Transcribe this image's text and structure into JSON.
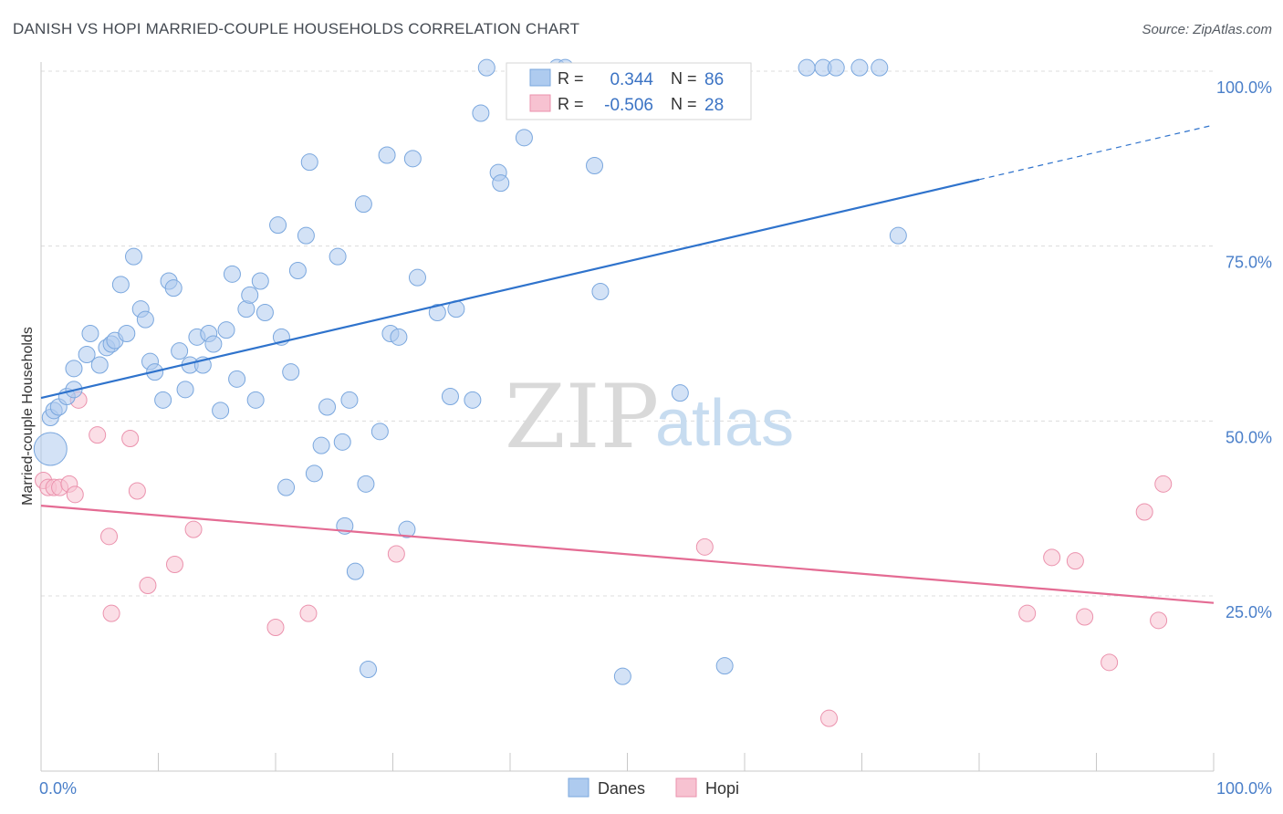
{
  "header": {
    "title": "DANISH VS HOPI MARRIED-COUPLE HOUSEHOLDS CORRELATION CHART",
    "source": "Source: ZipAtlas.com"
  },
  "watermark": {
    "zip": "ZIP",
    "atlas": "atlas"
  },
  "stats": {
    "danes": {
      "r_label": "R =",
      "r_value": "0.344",
      "n_label": "N =",
      "n_value": "86"
    },
    "hopi": {
      "r_label": "R =",
      "r_value": "-0.506",
      "n_label": "N =",
      "n_value": "28"
    }
  },
  "legend": {
    "danes": "Danes",
    "hopi": "Hopi"
  },
  "colors": {
    "danes_fill": "#aecbef",
    "danes_stroke": "#7aa7de",
    "danes_line": "#2f73cc",
    "hopi_fill": "#f7c2d1",
    "hopi_stroke": "#eb92ad",
    "hopi_line": "#e46b93",
    "grid": "#dcdcdc",
    "axis_text": "#4a7fc9"
  },
  "chart_data": {
    "type": "scatter",
    "title": "DANISH VS HOPI MARRIED-COUPLE HOUSEHOLDS CORRELATION CHART",
    "xlabel": "",
    "ylabel": "Married-couple Households",
    "xlim": [
      0,
      100
    ],
    "ylim": [
      0,
      100
    ],
    "x_tick_labels": [
      "0.0%",
      "100.0%"
    ],
    "y_tick_labels": [
      "25.0%",
      "50.0%",
      "75.0%",
      "100.0%"
    ],
    "y_ticks": [
      25,
      50,
      75,
      100
    ],
    "grid": true,
    "legend_position": "bottom",
    "series": [
      {
        "name": "Danes",
        "r": 0.344,
        "n": 86,
        "trend": {
          "x0": 0,
          "y0": 53.3,
          "x1": 80,
          "y1": 84.5,
          "dashed_to_x": 100,
          "dashed_to_y": 92.3
        },
        "points": [
          [
            0.8,
            46.0
          ],
          [
            0.8,
            50.5
          ],
          [
            1.1,
            51.5
          ],
          [
            1.5,
            52.0
          ],
          [
            2.2,
            53.5
          ],
          [
            2.8,
            54.5
          ],
          [
            2.8,
            57.5
          ],
          [
            3.9,
            59.5
          ],
          [
            4.2,
            62.5
          ],
          [
            5.0,
            58.0
          ],
          [
            5.6,
            60.5
          ],
          [
            6.0,
            61.0
          ],
          [
            6.3,
            61.5
          ],
          [
            6.8,
            69.5
          ],
          [
            7.3,
            62.5
          ],
          [
            7.9,
            73.5
          ],
          [
            8.5,
            66.0
          ],
          [
            8.9,
            64.5
          ],
          [
            9.3,
            58.5
          ],
          [
            9.7,
            57.0
          ],
          [
            10.4,
            53.0
          ],
          [
            10.9,
            70.0
          ],
          [
            11.3,
            69.0
          ],
          [
            11.8,
            60.0
          ],
          [
            12.3,
            54.5
          ],
          [
            12.7,
            58.0
          ],
          [
            13.3,
            62.0
          ],
          [
            13.8,
            58.0
          ],
          [
            14.3,
            62.5
          ],
          [
            14.7,
            61.0
          ],
          [
            15.3,
            51.5
          ],
          [
            15.8,
            63.0
          ],
          [
            16.3,
            71.0
          ],
          [
            16.7,
            56.0
          ],
          [
            17.5,
            66.0
          ],
          [
            17.8,
            68.0
          ],
          [
            18.3,
            53.0
          ],
          [
            18.7,
            70.0
          ],
          [
            19.1,
            65.5
          ],
          [
            20.2,
            78.0
          ],
          [
            20.5,
            62.0
          ],
          [
            20.9,
            40.5
          ],
          [
            21.3,
            57.0
          ],
          [
            21.9,
            71.5
          ],
          [
            22.6,
            76.5
          ],
          [
            22.9,
            87.0
          ],
          [
            23.3,
            42.5
          ],
          [
            23.9,
            46.5
          ],
          [
            24.4,
            52.0
          ],
          [
            25.3,
            73.5
          ],
          [
            25.7,
            47.0
          ],
          [
            25.9,
            35.0
          ],
          [
            26.3,
            53.0
          ],
          [
            26.8,
            28.5
          ],
          [
            27.5,
            81.0
          ],
          [
            27.7,
            41.0
          ],
          [
            27.9,
            14.5
          ],
          [
            28.9,
            48.5
          ],
          [
            29.5,
            88.0
          ],
          [
            29.8,
            62.5
          ],
          [
            30.5,
            62.0
          ],
          [
            31.2,
            34.5
          ],
          [
            31.7,
            87.5
          ],
          [
            32.1,
            70.5
          ],
          [
            33.8,
            65.5
          ],
          [
            34.9,
            53.5
          ],
          [
            35.4,
            66.0
          ],
          [
            36.8,
            53.0
          ],
          [
            37.5,
            94.0
          ],
          [
            38.0,
            100.5
          ],
          [
            39.0,
            85.5
          ],
          [
            39.2,
            84.0
          ],
          [
            41.2,
            90.5
          ],
          [
            44.0,
            100.5
          ],
          [
            44.7,
            100.5
          ],
          [
            47.2,
            86.5
          ],
          [
            47.7,
            68.5
          ],
          [
            49.6,
            13.5
          ],
          [
            54.5,
            54.0
          ],
          [
            58.3,
            15.0
          ],
          [
            65.3,
            100.5
          ],
          [
            66.7,
            100.5
          ],
          [
            67.8,
            100.5
          ],
          [
            69.8,
            100.5
          ],
          [
            71.5,
            100.5
          ],
          [
            73.1,
            76.5
          ]
        ]
      },
      {
        "name": "Hopi",
        "r": -0.506,
        "n": 28,
        "trend": {
          "x0": 0,
          "y0": 37.9,
          "x1": 100,
          "y1": 24.0
        },
        "points": [
          [
            0.2,
            41.5
          ],
          [
            0.6,
            40.5
          ],
          [
            1.1,
            40.5
          ],
          [
            1.6,
            40.5
          ],
          [
            2.4,
            41.0
          ],
          [
            2.9,
            39.5
          ],
          [
            3.2,
            53.0
          ],
          [
            4.8,
            48.0
          ],
          [
            5.8,
            33.5
          ],
          [
            6.0,
            22.5
          ],
          [
            7.6,
            47.5
          ],
          [
            8.2,
            40.0
          ],
          [
            9.1,
            26.5
          ],
          [
            11.4,
            29.5
          ],
          [
            13.0,
            34.5
          ],
          [
            20.0,
            20.5
          ],
          [
            22.8,
            22.5
          ],
          [
            30.3,
            31.0
          ],
          [
            56.6,
            32.0
          ],
          [
            67.2,
            7.5
          ],
          [
            84.1,
            22.5
          ],
          [
            86.2,
            30.5
          ],
          [
            88.2,
            30.0
          ],
          [
            89.0,
            22.0
          ],
          [
            91.1,
            15.5
          ],
          [
            94.1,
            37.0
          ],
          [
            95.3,
            21.5
          ],
          [
            95.7,
            41.0
          ]
        ]
      }
    ]
  }
}
